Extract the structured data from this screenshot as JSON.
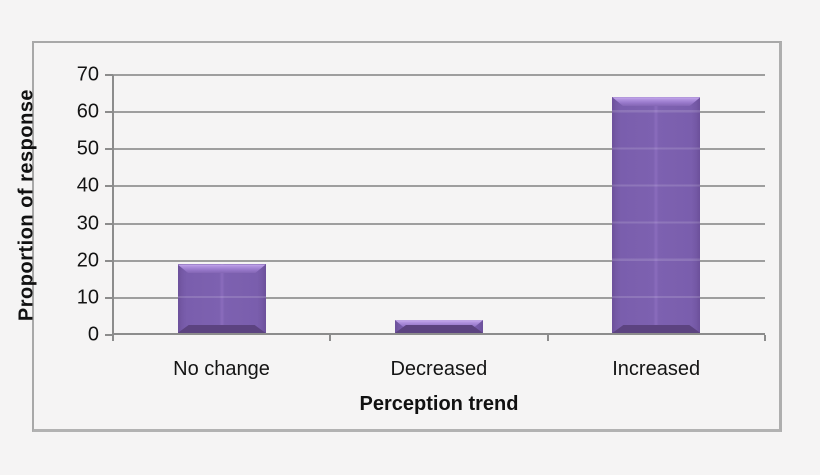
{
  "chart_data": {
    "type": "bar",
    "title": "",
    "categories": [
      "No change",
      "Decreased",
      "Increased"
    ],
    "values": [
      19,
      4,
      64
    ],
    "xlabel": "Perception trend",
    "ylabel": "Proportion of response",
    "ylim": [
      0,
      70
    ],
    "ytick_step": 10,
    "ytick_labels": [
      "0",
      "10",
      "20",
      "30",
      "40",
      "50",
      "60",
      "70"
    ],
    "grid": true,
    "legend": false,
    "colors": {
      "bar_main": "#7b5fae",
      "bar_bevel_light": "#cdb3f0",
      "bar_bevel_dark": "#5c4380",
      "gridline": "#9e9e9e",
      "axis": "#8c8c8c",
      "text": "#141414",
      "background": "#f5f4f4",
      "frame_border": "#a8a8a8"
    }
  }
}
